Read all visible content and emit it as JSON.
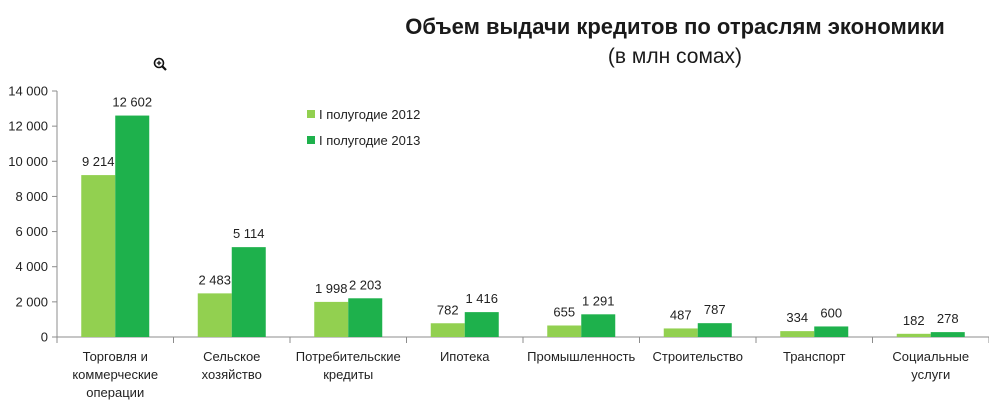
{
  "chart_data": {
    "type": "bar",
    "title": "Объем выдачи кредитов по отраслям экономики",
    "subtitle": "(в млн сомах)",
    "categories": [
      [
        "Торговля и",
        "коммерческие",
        "операции"
      ],
      [
        "Сельское",
        "хозяйство"
      ],
      [
        "Потребительские",
        "кредиты"
      ],
      [
        "Ипотека"
      ],
      [
        "Промышленность"
      ],
      [
        "Строительство"
      ],
      [
        "Транспорт"
      ],
      [
        "Социальные",
        "услуги"
      ]
    ],
    "series": [
      {
        "name": "I полугодие 2012",
        "color": "#92d050",
        "values": [
          9214,
          2483,
          1998,
          782,
          655,
          487,
          334,
          182
        ],
        "labels": [
          "9 214",
          "2 483",
          "1 998",
          "782",
          "655",
          "487",
          "334",
          "182"
        ]
      },
      {
        "name": "I полугодие 2013",
        "color": "#1eb14c",
        "values": [
          12602,
          5114,
          2203,
          1416,
          1291,
          787,
          600,
          278
        ],
        "labels": [
          "12 602",
          "5 114",
          "2 203",
          "1 416",
          "1 291",
          "787",
          "600",
          "278"
        ]
      }
    ],
    "ylim": [
      0,
      14000
    ],
    "yticks": [
      0,
      2000,
      4000,
      6000,
      8000,
      10000,
      12000,
      14000
    ],
    "ytick_labels": [
      "0",
      "2 000",
      "4 000",
      "6 000",
      "8 000",
      "10 000",
      "12 000",
      "14 000"
    ],
    "grid": false,
    "legend_position": "top-left-inside"
  },
  "icons": {
    "zoom": "zoom-in-icon"
  }
}
